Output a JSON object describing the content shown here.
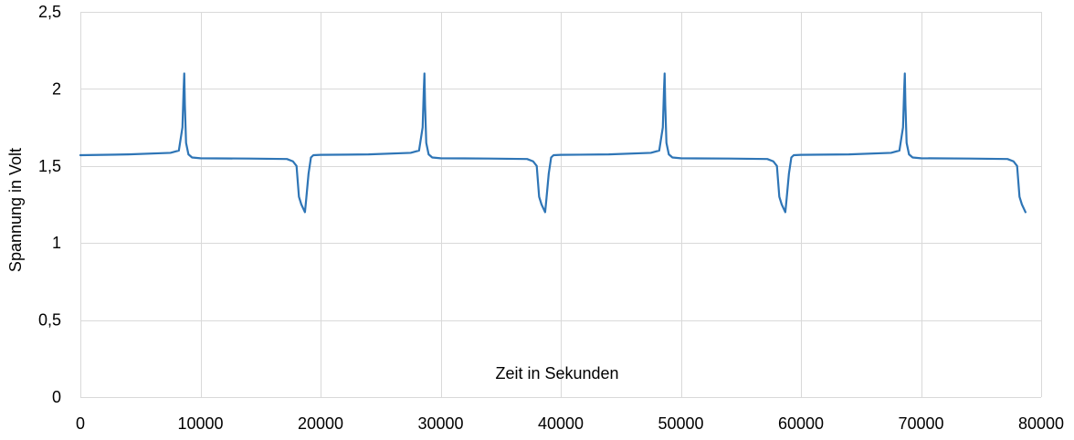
{
  "chart_data": {
    "type": "line",
    "title": "",
    "xlabel": "Zeit in Sekunden",
    "ylabel": "Spannung in Volt",
    "xlim": [
      0,
      80000
    ],
    "ylim": [
      0,
      2.5
    ],
    "x_ticks": [
      0,
      10000,
      20000,
      30000,
      40000,
      50000,
      60000,
      70000,
      80000
    ],
    "x_tick_labels": [
      "0",
      "10000",
      "20000",
      "30000",
      "40000",
      "50000",
      "60000",
      "70000",
      "80000"
    ],
    "y_ticks": [
      0,
      0.5,
      1,
      1.5,
      2,
      2.5
    ],
    "y_tick_labels": [
      "0",
      "0,5",
      "1",
      "1,5",
      "2",
      "2,5"
    ],
    "grid": true,
    "legend": "none",
    "series": [
      {
        "color": "#2e75b6",
        "x": [
          0,
          4000,
          7500,
          8200,
          8500,
          8600,
          8650,
          8700,
          8800,
          9000,
          9300,
          10000,
          14000,
          17200,
          17700,
          18000,
          18200,
          18400,
          18700,
          18800,
          19000,
          19200,
          19400,
          20000,
          24000,
          27500,
          28200,
          28500,
          28600,
          28650,
          28700,
          28800,
          29000,
          29300,
          30000,
          34000,
          37200,
          37700,
          38000,
          38200,
          38400,
          38700,
          38800,
          39000,
          39200,
          39400,
          40000,
          44000,
          47500,
          48200,
          48500,
          48600,
          48650,
          48700,
          48800,
          49000,
          49300,
          50000,
          54000,
          57200,
          57700,
          58000,
          58200,
          58400,
          58700,
          58800,
          59000,
          59200,
          59400,
          60000,
          64000,
          67500,
          68200,
          68500,
          68600,
          68650,
          68700,
          68800,
          69000,
          69300,
          70000,
          74000,
          77200,
          77700,
          78000,
          78200,
          78400,
          78700
        ],
        "y": [
          1.57,
          1.575,
          1.585,
          1.6,
          1.75,
          2.0,
          2.1,
          1.9,
          1.65,
          1.575,
          1.555,
          1.55,
          1.548,
          1.545,
          1.53,
          1.5,
          1.3,
          1.25,
          1.2,
          1.28,
          1.45,
          1.555,
          1.57,
          1.572,
          1.575,
          1.585,
          1.6,
          1.75,
          2.0,
          2.1,
          1.9,
          1.65,
          1.575,
          1.555,
          1.55,
          1.548,
          1.545,
          1.53,
          1.5,
          1.3,
          1.25,
          1.2,
          1.28,
          1.45,
          1.555,
          1.57,
          1.572,
          1.575,
          1.585,
          1.6,
          1.75,
          2.0,
          2.1,
          1.9,
          1.65,
          1.575,
          1.555,
          1.55,
          1.548,
          1.545,
          1.53,
          1.5,
          1.3,
          1.25,
          1.2,
          1.28,
          1.45,
          1.555,
          1.57,
          1.572,
          1.575,
          1.585,
          1.6,
          1.75,
          2.0,
          2.1,
          1.9,
          1.65,
          1.575,
          1.555,
          1.55,
          1.548,
          1.545,
          1.53,
          1.5,
          1.3,
          1.25,
          1.2
        ]
      }
    ]
  }
}
